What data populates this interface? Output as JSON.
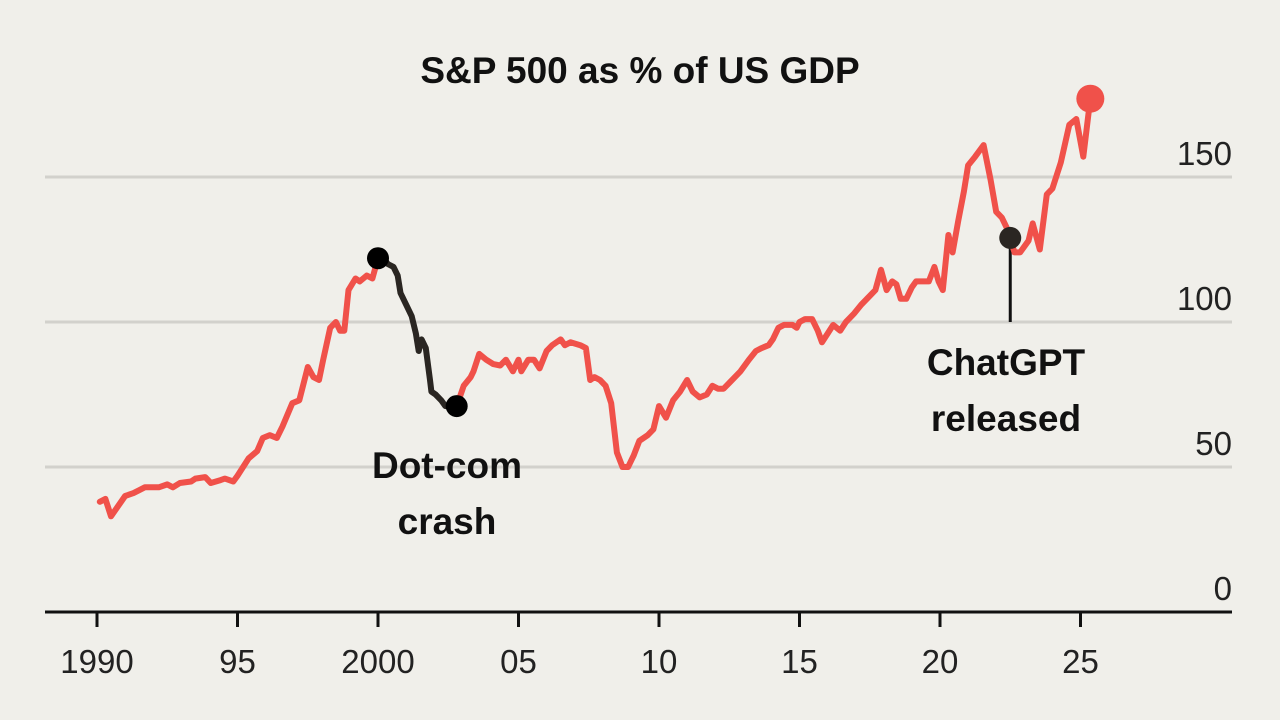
{
  "chart_data": {
    "type": "line",
    "title": "S&P 500 as % of US GDP",
    "xlabel": "",
    "ylabel": "",
    "xlim": [
      1988.2,
      2030.3
    ],
    "ylim": [
      0,
      180
    ],
    "grid": true,
    "x_ticks": [
      {
        "value": 1990,
        "label": "1990"
      },
      {
        "value": 1995,
        "label": "95"
      },
      {
        "value": 2000,
        "label": "2000"
      },
      {
        "value": 2005,
        "label": "05"
      },
      {
        "value": 2010,
        "label": "10"
      },
      {
        "value": 2015,
        "label": "15"
      },
      {
        "value": 2020,
        "label": "20"
      },
      {
        "value": 2025,
        "label": "25"
      }
    ],
    "y_ticks": [
      {
        "value": 0,
        "label": "0"
      },
      {
        "value": 50,
        "label": "50"
      },
      {
        "value": 100,
        "label": "100"
      },
      {
        "value": 150,
        "label": "150"
      }
    ],
    "colors": {
      "main": "#f0514a",
      "highlight": "#2a2622",
      "grid": "#d2d1cc",
      "background": "#f0efea"
    },
    "series": [
      {
        "color": "#f0514a",
        "points": [
          [
            1990.1,
            38
          ],
          [
            1990.3,
            39
          ],
          [
            1990.5,
            33
          ],
          [
            1991.0,
            40
          ],
          [
            1991.3,
            41
          ],
          [
            1991.5,
            42
          ],
          [
            1991.7,
            43
          ],
          [
            1992.2,
            43
          ],
          [
            1992.5,
            44
          ],
          [
            1992.7,
            43
          ],
          [
            1992.95,
            44.5
          ],
          [
            1993.35,
            45
          ],
          [
            1993.5,
            46
          ],
          [
            1993.85,
            46.5
          ],
          [
            1994.05,
            44.5
          ],
          [
            1994.4,
            45.5
          ],
          [
            1994.55,
            46
          ],
          [
            1994.85,
            45
          ],
          [
            1995.0,
            47
          ],
          [
            1995.4,
            53
          ],
          [
            1995.7,
            55.5
          ],
          [
            1995.9,
            60
          ],
          [
            1996.15,
            61
          ],
          [
            1996.4,
            60
          ],
          [
            1996.6,
            64
          ],
          [
            1996.95,
            72
          ],
          [
            1997.2,
            73
          ],
          [
            1997.5,
            84.5
          ],
          [
            1997.7,
            81
          ],
          [
            1997.9,
            80
          ],
          [
            1998.05,
            87
          ],
          [
            1998.3,
            98
          ],
          [
            1998.5,
            100
          ],
          [
            1998.65,
            97
          ],
          [
            1998.8,
            97
          ],
          [
            1998.95,
            111
          ],
          [
            1999.2,
            115
          ],
          [
            1999.35,
            114
          ],
          [
            1999.6,
            116
          ],
          [
            1999.8,
            115
          ],
          [
            2000.0,
            122
          ]
        ]
      },
      {
        "color": "#2a2622",
        "points": [
          [
            2000.0,
            122
          ],
          [
            2000.2,
            122
          ],
          [
            2000.35,
            120
          ],
          [
            2000.55,
            119
          ],
          [
            2000.7,
            116
          ],
          [
            2000.8,
            110
          ],
          [
            2001.0,
            106
          ],
          [
            2001.2,
            102
          ],
          [
            2001.35,
            96
          ],
          [
            2001.45,
            90
          ],
          [
            2001.55,
            94
          ],
          [
            2001.7,
            91
          ],
          [
            2001.85,
            80
          ],
          [
            2001.9,
            76
          ],
          [
            2002.05,
            75
          ],
          [
            2002.25,
            73
          ],
          [
            2002.4,
            71
          ],
          [
            2002.8,
            71
          ]
        ]
      },
      {
        "color": "#f0514a",
        "points": [
          [
            2002.8,
            71
          ],
          [
            2003.05,
            78
          ],
          [
            2003.3,
            81
          ],
          [
            2003.4,
            83
          ],
          [
            2003.6,
            89
          ],
          [
            2003.85,
            87
          ],
          [
            2004.1,
            85.5
          ],
          [
            2004.35,
            85
          ],
          [
            2004.55,
            87
          ],
          [
            2004.8,
            83
          ],
          [
            2005.0,
            87
          ],
          [
            2005.1,
            83
          ],
          [
            2005.35,
            87
          ],
          [
            2005.55,
            87
          ],
          [
            2005.75,
            84
          ],
          [
            2006.0,
            90
          ],
          [
            2006.2,
            92
          ],
          [
            2006.5,
            94
          ],
          [
            2006.65,
            92
          ],
          [
            2006.85,
            93
          ],
          [
            2007.2,
            92
          ],
          [
            2007.4,
            91
          ],
          [
            2007.55,
            80
          ],
          [
            2007.7,
            81
          ],
          [
            2007.9,
            80
          ],
          [
            2008.1,
            78
          ],
          [
            2008.3,
            72
          ],
          [
            2008.5,
            55
          ],
          [
            2008.7,
            50
          ],
          [
            2008.9,
            50
          ],
          [
            2009.1,
            54
          ],
          [
            2009.3,
            59
          ],
          [
            2009.6,
            61
          ],
          [
            2009.8,
            63
          ],
          [
            2010.0,
            71
          ],
          [
            2010.25,
            67
          ],
          [
            2010.5,
            73
          ],
          [
            2010.75,
            76
          ],
          [
            2011.0,
            80
          ],
          [
            2011.2,
            76
          ],
          [
            2011.45,
            74
          ],
          [
            2011.7,
            75
          ],
          [
            2011.9,
            78
          ],
          [
            2012.1,
            77
          ],
          [
            2012.3,
            77
          ],
          [
            2012.5,
            79
          ],
          [
            2012.9,
            83
          ],
          [
            2013.2,
            87
          ],
          [
            2013.45,
            90
          ],
          [
            2013.65,
            91
          ],
          [
            2013.9,
            92
          ],
          [
            2014.05,
            94
          ],
          [
            2014.25,
            98
          ],
          [
            2014.45,
            99
          ],
          [
            2014.75,
            99
          ],
          [
            2014.9,
            98
          ],
          [
            2015.0,
            100
          ],
          [
            2015.2,
            101
          ],
          [
            2015.45,
            101
          ],
          [
            2015.65,
            97
          ],
          [
            2015.8,
            93
          ],
          [
            2016.0,
            96
          ],
          [
            2016.2,
            99
          ],
          [
            2016.45,
            97
          ],
          [
            2016.65,
            100
          ],
          [
            2016.95,
            103
          ],
          [
            2017.2,
            106
          ],
          [
            2017.5,
            109
          ],
          [
            2017.7,
            111
          ],
          [
            2017.9,
            118
          ],
          [
            2018.1,
            111
          ],
          [
            2018.3,
            114
          ],
          [
            2018.45,
            113
          ],
          [
            2018.6,
            108
          ],
          [
            2018.8,
            108
          ],
          [
            2019.0,
            112
          ],
          [
            2019.15,
            114
          ],
          [
            2019.35,
            114
          ],
          [
            2019.6,
            114
          ],
          [
            2019.8,
            119
          ],
          [
            2019.95,
            114
          ],
          [
            2020.1,
            111
          ],
          [
            2020.3,
            130
          ],
          [
            2020.45,
            124
          ],
          [
            2020.65,
            135
          ],
          [
            2020.85,
            145
          ],
          [
            2021.0,
            154
          ],
          [
            2021.25,
            157
          ],
          [
            2021.55,
            161
          ],
          [
            2021.8,
            149
          ],
          [
            2022.0,
            138
          ],
          [
            2022.2,
            136
          ],
          [
            2022.4,
            132
          ],
          [
            2022.65,
            124
          ],
          [
            2022.85,
            124
          ],
          [
            2023.15,
            128
          ],
          [
            2023.3,
            134
          ],
          [
            2023.55,
            125
          ],
          [
            2023.8,
            144
          ],
          [
            2024.0,
            146
          ],
          [
            2024.3,
            155
          ],
          [
            2024.6,
            168
          ],
          [
            2024.85,
            170
          ],
          [
            2025.1,
            157
          ],
          [
            2025.35,
            177
          ]
        ]
      }
    ],
    "markers": [
      {
        "x": 2000.0,
        "y": 122,
        "color": "#000000"
      },
      {
        "x": 2002.8,
        "y": 71,
        "color": "#000000"
      },
      {
        "x": 2022.5,
        "y": 129,
        "color": "#2a2622"
      },
      {
        "x": 2025.35,
        "y": 177,
        "color": "#f0514a"
      }
    ],
    "annotations": [
      {
        "lines": [
          "Dot-com",
          "crash"
        ]
      },
      {
        "lines": [
          "ChatGPT",
          "released"
        ]
      }
    ]
  }
}
